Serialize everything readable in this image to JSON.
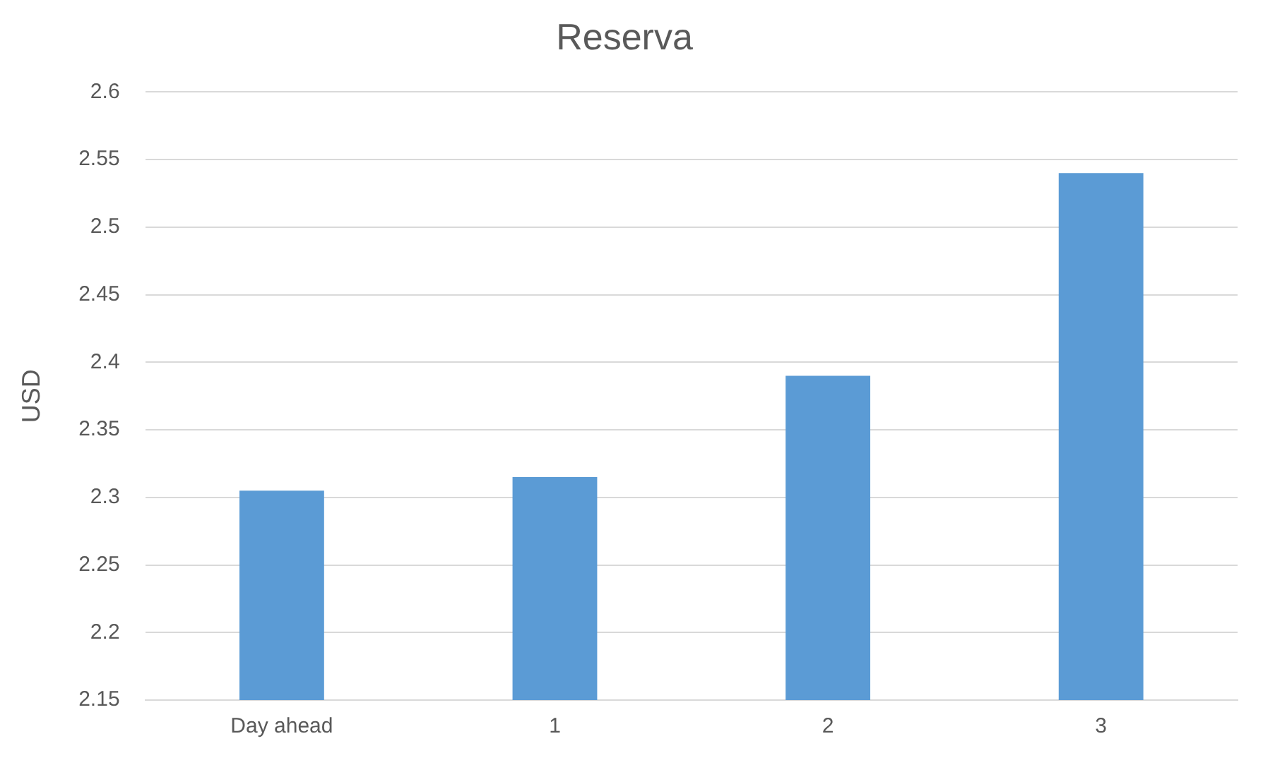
{
  "chart_data": {
    "type": "bar",
    "title": "Reserva",
    "ylabel": "USD",
    "categories": [
      "Day ahead",
      "1",
      "2",
      "3"
    ],
    "values": [
      2.305,
      2.315,
      2.39,
      2.54
    ],
    "color": "#5b9bd5",
    "ylim": [
      2.15,
      2.6
    ],
    "yticks": [
      2.15,
      2.2,
      2.25,
      2.3,
      2.35,
      2.4,
      2.45,
      2.5,
      2.55,
      2.6
    ],
    "grid": "y"
  }
}
